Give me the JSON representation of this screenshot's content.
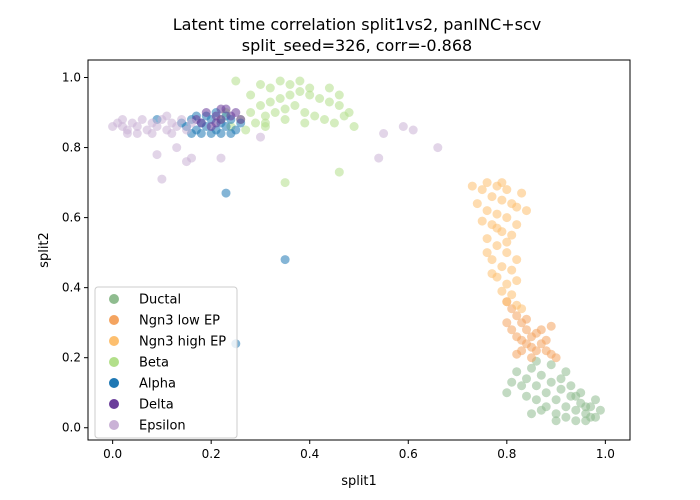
{
  "chart_data": {
    "type": "scatter",
    "title_line1": "Latent time correlation split1vs2, panINC+scv",
    "title_line2": "split_seed=326, corr=-0.868",
    "xlabel": "split1",
    "ylabel": "split2",
    "xlim": [
      -0.05,
      1.05
    ],
    "ylim": [
      -0.035,
      1.05
    ],
    "xticks": [
      0.0,
      0.2,
      0.4,
      0.6,
      0.8,
      1.0
    ],
    "xtick_labels": [
      "0.0",
      "0.2",
      "0.4",
      "0.6",
      "0.8",
      "1.0"
    ],
    "yticks": [
      0.0,
      0.2,
      0.4,
      0.6,
      0.8,
      1.0
    ],
    "ytick_labels": [
      "0.0",
      "0.2",
      "0.4",
      "0.6",
      "0.8",
      "1.0"
    ],
    "grid": false,
    "legend_position": "lower-left",
    "series": [
      {
        "name": "Ductal",
        "color": "#8fbc8f",
        "points": [
          [
            0.82,
            0.16
          ],
          [
            0.84,
            0.14
          ],
          [
            0.86,
            0.12
          ],
          [
            0.88,
            0.1
          ],
          [
            0.9,
            0.08
          ],
          [
            0.92,
            0.06
          ],
          [
            0.94,
            0.05
          ],
          [
            0.96,
            0.04
          ],
          [
            0.98,
            0.03
          ],
          [
            0.85,
            0.17
          ],
          [
            0.87,
            0.15
          ],
          [
            0.89,
            0.13
          ],
          [
            0.91,
            0.11
          ],
          [
            0.93,
            0.09
          ],
          [
            0.95,
            0.07
          ],
          [
            0.97,
            0.06
          ],
          [
            0.83,
            0.12
          ],
          [
            0.86,
            0.08
          ],
          [
            0.88,
            0.06
          ],
          [
            0.9,
            0.04
          ],
          [
            0.92,
            0.03
          ],
          [
            0.94,
            0.02
          ],
          [
            0.96,
            0.02
          ],
          [
            0.99,
            0.05
          ],
          [
            0.98,
            0.08
          ],
          [
            0.84,
            0.09
          ],
          [
            0.87,
            0.05
          ],
          [
            0.91,
            0.14
          ],
          [
            0.93,
            0.12
          ],
          [
            0.95,
            0.1
          ],
          [
            0.97,
            0.03
          ],
          [
            0.89,
            0.18
          ],
          [
            0.86,
            0.19
          ],
          [
            0.92,
            0.16
          ],
          [
            0.81,
            0.13
          ],
          [
            0.8,
            0.1
          ],
          [
            0.85,
            0.04
          ],
          [
            0.9,
            0.02
          ],
          [
            0.96,
            0.06
          ],
          [
            0.94,
            0.09
          ]
        ]
      },
      {
        "name": "Ngn3 low EP",
        "color": "#f4a460",
        "points": [
          [
            0.8,
            0.3
          ],
          [
            0.81,
            0.28
          ],
          [
            0.82,
            0.26
          ],
          [
            0.83,
            0.25
          ],
          [
            0.84,
            0.24
          ],
          [
            0.85,
            0.23
          ],
          [
            0.86,
            0.22
          ],
          [
            0.82,
            0.32
          ],
          [
            0.83,
            0.3
          ],
          [
            0.84,
            0.28
          ],
          [
            0.85,
            0.26
          ],
          [
            0.87,
            0.24
          ],
          [
            0.88,
            0.22
          ],
          [
            0.86,
            0.27
          ],
          [
            0.81,
            0.34
          ],
          [
            0.8,
            0.36
          ],
          [
            0.84,
            0.31
          ],
          [
            0.89,
            0.21
          ],
          [
            0.9,
            0.2
          ],
          [
            0.85,
            0.2
          ],
          [
            0.83,
            0.22
          ],
          [
            0.82,
            0.21
          ],
          [
            0.88,
            0.25
          ],
          [
            0.87,
            0.28
          ],
          [
            0.89,
            0.29
          ]
        ]
      },
      {
        "name": "Ngn3 high EP",
        "color": "#fdbf6f",
        "points": [
          [
            0.76,
            0.7
          ],
          [
            0.78,
            0.69
          ],
          [
            0.8,
            0.68
          ],
          [
            0.77,
            0.66
          ],
          [
            0.79,
            0.65
          ],
          [
            0.81,
            0.64
          ],
          [
            0.76,
            0.62
          ],
          [
            0.78,
            0.61
          ],
          [
            0.8,
            0.6
          ],
          [
            0.82,
            0.63
          ],
          [
            0.77,
            0.58
          ],
          [
            0.79,
            0.56
          ],
          [
            0.81,
            0.55
          ],
          [
            0.76,
            0.54
          ],
          [
            0.78,
            0.52
          ],
          [
            0.8,
            0.5
          ],
          [
            0.77,
            0.48
          ],
          [
            0.79,
            0.46
          ],
          [
            0.81,
            0.45
          ],
          [
            0.78,
            0.43
          ],
          [
            0.8,
            0.41
          ],
          [
            0.79,
            0.39
          ],
          [
            0.81,
            0.38
          ],
          [
            0.8,
            0.36
          ],
          [
            0.82,
            0.35
          ],
          [
            0.75,
            0.68
          ],
          [
            0.74,
            0.64
          ],
          [
            0.83,
            0.67
          ],
          [
            0.82,
            0.58
          ],
          [
            0.75,
            0.59
          ],
          [
            0.76,
            0.5
          ],
          [
            0.82,
            0.48
          ],
          [
            0.78,
            0.57
          ],
          [
            0.79,
            0.7
          ],
          [
            0.73,
            0.69
          ],
          [
            0.84,
            0.62
          ],
          [
            0.8,
            0.53
          ],
          [
            0.77,
            0.44
          ],
          [
            0.82,
            0.42
          ],
          [
            0.83,
            0.34
          ]
        ]
      },
      {
        "name": "Beta",
        "color": "#b2df8a",
        "points": [
          [
            0.24,
            0.86
          ],
          [
            0.26,
            0.88
          ],
          [
            0.28,
            0.9
          ],
          [
            0.3,
            0.92
          ],
          [
            0.32,
            0.93
          ],
          [
            0.34,
            0.94
          ],
          [
            0.36,
            0.95
          ],
          [
            0.38,
            0.96
          ],
          [
            0.4,
            0.95
          ],
          [
            0.42,
            0.94
          ],
          [
            0.44,
            0.93
          ],
          [
            0.46,
            0.92
          ],
          [
            0.27,
            0.85
          ],
          [
            0.29,
            0.87
          ],
          [
            0.31,
            0.89
          ],
          [
            0.33,
            0.9
          ],
          [
            0.35,
            0.91
          ],
          [
            0.37,
            0.92
          ],
          [
            0.39,
            0.9
          ],
          [
            0.41,
            0.89
          ],
          [
            0.43,
            0.88
          ],
          [
            0.45,
            0.87
          ],
          [
            0.47,
            0.89
          ],
          [
            0.3,
            0.98
          ],
          [
            0.32,
            0.97
          ],
          [
            0.34,
            0.99
          ],
          [
            0.36,
            0.98
          ],
          [
            0.38,
            0.99
          ],
          [
            0.4,
            0.97
          ],
          [
            0.25,
            0.99
          ],
          [
            0.28,
            0.95
          ],
          [
            0.44,
            0.97
          ],
          [
            0.46,
            0.95
          ],
          [
            0.48,
            0.9
          ],
          [
            0.49,
            0.86
          ],
          [
            0.31,
            0.86
          ],
          [
            0.35,
            0.88
          ],
          [
            0.39,
            0.87
          ],
          [
            0.22,
            0.88
          ],
          [
            0.23,
            0.9
          ],
          [
            0.35,
            0.7
          ],
          [
            0.46,
            0.73
          ],
          [
            0.31,
            0.87
          ]
        ]
      },
      {
        "name": "Alpha",
        "color": "#1f78b4",
        "points": [
          [
            0.14,
            0.87
          ],
          [
            0.15,
            0.86
          ],
          [
            0.16,
            0.88
          ],
          [
            0.17,
            0.85
          ],
          [
            0.18,
            0.87
          ],
          [
            0.19,
            0.86
          ],
          [
            0.2,
            0.88
          ],
          [
            0.21,
            0.85
          ],
          [
            0.22,
            0.87
          ],
          [
            0.23,
            0.86
          ],
          [
            0.24,
            0.88
          ],
          [
            0.25,
            0.85
          ],
          [
            0.16,
            0.84
          ],
          [
            0.18,
            0.84
          ],
          [
            0.2,
            0.84
          ],
          [
            0.22,
            0.84
          ],
          [
            0.24,
            0.84
          ],
          [
            0.19,
            0.89
          ],
          [
            0.21,
            0.9
          ],
          [
            0.23,
            0.89
          ],
          [
            0.09,
            0.88
          ],
          [
            0.23,
            0.67
          ],
          [
            0.35,
            0.48
          ],
          [
            0.25,
            0.24
          ],
          [
            0.17,
            0.89
          ],
          [
            0.26,
            0.87
          ]
        ]
      },
      {
        "name": "Delta",
        "color": "#6a3d9a",
        "points": [
          [
            0.17,
            0.88
          ],
          [
            0.19,
            0.9
          ],
          [
            0.21,
            0.89
          ],
          [
            0.23,
            0.91
          ],
          [
            0.25,
            0.9
          ],
          [
            0.2,
            0.86
          ],
          [
            0.22,
            0.88
          ],
          [
            0.24,
            0.89
          ],
          [
            0.18,
            0.87
          ],
          [
            0.22,
            0.91
          ],
          [
            0.26,
            0.88
          ],
          [
            0.21,
            0.87
          ]
        ]
      },
      {
        "name": "Epsilon",
        "color": "#cab2d6",
        "points": [
          [
            0.0,
            0.86
          ],
          [
            0.01,
            0.87
          ],
          [
            0.02,
            0.86
          ],
          [
            0.03,
            0.85
          ],
          [
            0.04,
            0.87
          ],
          [
            0.05,
            0.86
          ],
          [
            0.06,
            0.88
          ],
          [
            0.07,
            0.85
          ],
          [
            0.08,
            0.87
          ],
          [
            0.09,
            0.86
          ],
          [
            0.1,
            0.88
          ],
          [
            0.11,
            0.85
          ],
          [
            0.12,
            0.87
          ],
          [
            0.13,
            0.86
          ],
          [
            0.14,
            0.88
          ],
          [
            0.15,
            0.85
          ],
          [
            0.16,
            0.87
          ],
          [
            0.02,
            0.88
          ],
          [
            0.05,
            0.84
          ],
          [
            0.08,
            0.84
          ],
          [
            0.11,
            0.89
          ],
          [
            0.09,
            0.78
          ],
          [
            0.1,
            0.71
          ],
          [
            0.13,
            0.8
          ],
          [
            0.15,
            0.76
          ],
          [
            0.16,
            0.77
          ],
          [
            0.22,
            0.77
          ],
          [
            0.54,
            0.77
          ],
          [
            0.55,
            0.84
          ],
          [
            0.59,
            0.86
          ],
          [
            0.61,
            0.85
          ],
          [
            0.66,
            0.8
          ],
          [
            0.3,
            0.83
          ],
          [
            0.03,
            0.84
          ],
          [
            0.12,
            0.84
          ]
        ]
      }
    ]
  }
}
